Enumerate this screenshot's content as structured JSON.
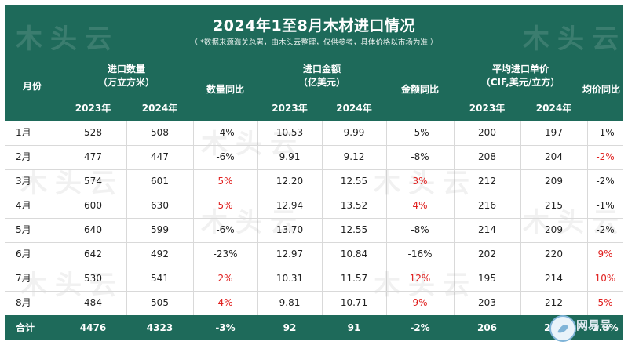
{
  "title": "2024年1至8月木材进口情况",
  "subtitle": "（ *数据来源海关总署，由木头云整理，仅供参考，具体价格以市场为准 ）",
  "watermark": "木头云",
  "logo": {
    "text": "网易号",
    "icon": "netease-logo-icon"
  },
  "headers": {
    "month": "月份",
    "volume_line1": "进口数量",
    "volume_line2": "（万立方米）",
    "volume_yoy": "数量同比",
    "amount_line1": "进口金额",
    "amount_line2": "（亿美元）",
    "amount_yoy": "金额同比",
    "price_line1": "平均进口单价",
    "price_line2": "（CIF,美元/立方）",
    "price_yoy": "均价同比",
    "y2023": "2023年",
    "y2024": "2024年"
  },
  "colors": {
    "header_bg": "#1e6a5a",
    "negative_highlight": "#e0201f",
    "text": "#222222"
  },
  "rows": [
    {
      "month": "1月",
      "vol_2023": "528",
      "vol_2024": "508",
      "vol_yoy": "-4%",
      "vol_yoy_red": false,
      "amt_2023": "10.53",
      "amt_2024": "9.99",
      "amt_yoy": "-5%",
      "amt_yoy_red": false,
      "price_2023": "200",
      "price_2024": "197",
      "price_yoy": "-1%",
      "price_yoy_red": false
    },
    {
      "month": "2月",
      "vol_2023": "477",
      "vol_2024": "447",
      "vol_yoy": "-6%",
      "vol_yoy_red": false,
      "amt_2023": "9.91",
      "amt_2024": "9.12",
      "amt_yoy": "-8%",
      "amt_yoy_red": false,
      "price_2023": "208",
      "price_2024": "204",
      "price_yoy": "-2%",
      "price_yoy_red": true
    },
    {
      "month": "3月",
      "vol_2023": "574",
      "vol_2024": "601",
      "vol_yoy": "5%",
      "vol_yoy_red": true,
      "amt_2023": "12.20",
      "amt_2024": "12.55",
      "amt_yoy": "3%",
      "amt_yoy_red": true,
      "price_2023": "212",
      "price_2024": "209",
      "price_yoy": "-2%",
      "price_yoy_red": false
    },
    {
      "month": "4月",
      "vol_2023": "600",
      "vol_2024": "630",
      "vol_yoy": "5%",
      "vol_yoy_red": true,
      "amt_2023": "12.94",
      "amt_2024": "13.52",
      "amt_yoy": "4%",
      "amt_yoy_red": true,
      "price_2023": "216",
      "price_2024": "215",
      "price_yoy": "-1%",
      "price_yoy_red": false
    },
    {
      "month": "5月",
      "vol_2023": "640",
      "vol_2024": "599",
      "vol_yoy": "-6%",
      "vol_yoy_red": false,
      "amt_2023": "13.70",
      "amt_2024": "12.55",
      "amt_yoy": "-8%",
      "amt_yoy_red": false,
      "price_2023": "214",
      "price_2024": "209",
      "price_yoy": "-2%",
      "price_yoy_red": false
    },
    {
      "month": "6月",
      "vol_2023": "642",
      "vol_2024": "492",
      "vol_yoy": "-23%",
      "vol_yoy_red": false,
      "amt_2023": "12.97",
      "amt_2024": "10.84",
      "amt_yoy": "-16%",
      "amt_yoy_red": false,
      "price_2023": "202",
      "price_2024": "220",
      "price_yoy": "9%",
      "price_yoy_red": true
    },
    {
      "month": "7月",
      "vol_2023": "530",
      "vol_2024": "541",
      "vol_yoy": "2%",
      "vol_yoy_red": true,
      "amt_2023": "10.31",
      "amt_2024": "11.57",
      "amt_yoy": "12%",
      "amt_yoy_red": true,
      "price_2023": "195",
      "price_2024": "214",
      "price_yoy": "10%",
      "price_yoy_red": true
    },
    {
      "month": "8月",
      "vol_2023": "484",
      "vol_2024": "505",
      "vol_yoy": "4%",
      "vol_yoy_red": true,
      "amt_2023": "9.81",
      "amt_2024": "10.71",
      "amt_yoy": "9%",
      "amt_yoy_red": true,
      "price_2023": "203",
      "price_2024": "212",
      "price_yoy": "5%",
      "price_yoy_red": true
    }
  ],
  "total": {
    "month": "合计",
    "vol_2023": "4476",
    "vol_2024": "4323",
    "vol_yoy": "-3%",
    "amt_2023": "92",
    "amt_2024": "91",
    "amt_yoy": "-2%",
    "price_2023": "206",
    "price_2024": "210",
    "price_yoy": "1.8%"
  }
}
